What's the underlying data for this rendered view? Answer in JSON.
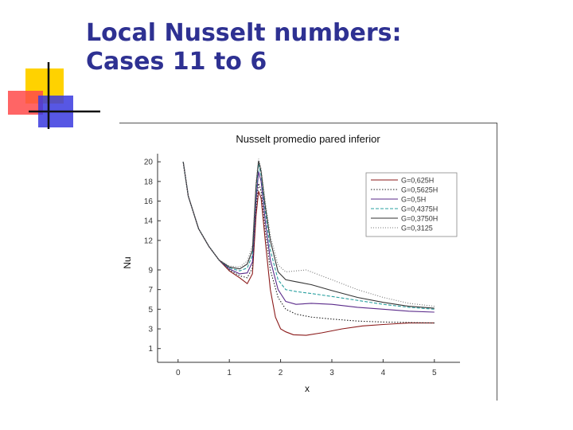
{
  "slide": {
    "title_line1": "Local Nusselt numbers:",
    "title_line2": "Cases 11 to 6"
  },
  "colors": {
    "title": "#2e3192",
    "deco_yellow": "#ffd200",
    "deco_red": "#ff4a4a",
    "deco_blue": "#3a3adf"
  },
  "chart_data": {
    "type": "line",
    "title": "Nusselt promedio pared inferior",
    "xlabel": "x",
    "ylabel": "Nu",
    "xlim": [
      -0.4,
      5.5
    ],
    "ylim": [
      -0.4,
      20.5
    ],
    "xticks": [
      "0",
      "1",
      "2",
      "3",
      "4",
      "5"
    ],
    "yticks": [
      "1",
      "3",
      "5",
      "7",
      "9",
      "12",
      "14",
      "16",
      "18",
      "20"
    ],
    "grid": false,
    "legend_position": "top-right",
    "series": [
      {
        "name": "G=0,625H",
        "color": "#8b1a1a",
        "dash": "",
        "points": [
          [
            0.1,
            20
          ],
          [
            0.2,
            16.5
          ],
          [
            0.4,
            13.2
          ],
          [
            0.6,
            11.4
          ],
          [
            0.8,
            10.0
          ],
          [
            1.0,
            8.9
          ],
          [
            1.2,
            8.2
          ],
          [
            1.35,
            7.6
          ],
          [
            1.45,
            8.6
          ],
          [
            1.52,
            14.5
          ],
          [
            1.57,
            17.0
          ],
          [
            1.62,
            16.3
          ],
          [
            1.7,
            12
          ],
          [
            1.8,
            7
          ],
          [
            1.9,
            4.2
          ],
          [
            2.0,
            3.0
          ],
          [
            2.1,
            2.7
          ],
          [
            2.25,
            2.4
          ],
          [
            2.5,
            2.35
          ],
          [
            2.8,
            2.6
          ],
          [
            3.2,
            3.0
          ],
          [
            3.6,
            3.3
          ],
          [
            4.0,
            3.45
          ],
          [
            4.5,
            3.6
          ],
          [
            5.0,
            3.6
          ]
        ]
      },
      {
        "name": "G=0,5625H",
        "color": "#222222",
        "dash": "1.5,2",
        "points": [
          [
            0.1,
            20
          ],
          [
            0.2,
            16.5
          ],
          [
            0.4,
            13.2
          ],
          [
            0.6,
            11.4
          ],
          [
            0.8,
            10.0
          ],
          [
            1.0,
            9.0
          ],
          [
            1.2,
            8.4
          ],
          [
            1.35,
            8.2
          ],
          [
            1.45,
            9.2
          ],
          [
            1.52,
            15.2
          ],
          [
            1.57,
            17.8
          ],
          [
            1.62,
            17.0
          ],
          [
            1.7,
            13
          ],
          [
            1.8,
            9
          ],
          [
            1.95,
            6.2
          ],
          [
            2.1,
            5.0
          ],
          [
            2.3,
            4.5
          ],
          [
            2.6,
            4.2
          ],
          [
            3.0,
            4.0
          ],
          [
            3.5,
            3.8
          ],
          [
            4.0,
            3.7
          ],
          [
            4.5,
            3.65
          ],
          [
            5.0,
            3.6
          ]
        ]
      },
      {
        "name": "G=0,5H",
        "color": "#5a2a8a",
        "dash": "",
        "points": [
          [
            0.1,
            20
          ],
          [
            0.2,
            16.5
          ],
          [
            0.4,
            13.2
          ],
          [
            0.6,
            11.4
          ],
          [
            0.8,
            10.0
          ],
          [
            1.0,
            9.1
          ],
          [
            1.2,
            8.6
          ],
          [
            1.35,
            8.7
          ],
          [
            1.45,
            9.8
          ],
          [
            1.52,
            16
          ],
          [
            1.57,
            19.0
          ],
          [
            1.62,
            18.0
          ],
          [
            1.7,
            14
          ],
          [
            1.8,
            10
          ],
          [
            1.95,
            7.0
          ],
          [
            2.1,
            5.8
          ],
          [
            2.3,
            5.5
          ],
          [
            2.6,
            5.6
          ],
          [
            3.0,
            5.5
          ],
          [
            3.5,
            5.2
          ],
          [
            4.0,
            5.0
          ],
          [
            4.5,
            4.8
          ],
          [
            5.0,
            4.7
          ]
        ]
      },
      {
        "name": "G=0,4375H",
        "color": "#2aa0a0",
        "dash": "4,2",
        "points": [
          [
            0.1,
            20
          ],
          [
            0.2,
            16.5
          ],
          [
            0.4,
            13.2
          ],
          [
            0.6,
            11.4
          ],
          [
            0.8,
            10.0
          ],
          [
            1.0,
            9.2
          ],
          [
            1.2,
            8.9
          ],
          [
            1.35,
            9.2
          ],
          [
            1.45,
            10.5
          ],
          [
            1.52,
            16.8
          ],
          [
            1.57,
            19.8
          ],
          [
            1.62,
            18.6
          ],
          [
            1.7,
            15
          ],
          [
            1.8,
            11
          ],
          [
            1.95,
            8.0
          ],
          [
            2.1,
            7.0
          ],
          [
            2.3,
            6.8
          ],
          [
            2.6,
            6.6
          ],
          [
            3.0,
            6.3
          ],
          [
            3.5,
            5.9
          ],
          [
            4.0,
            5.5
          ],
          [
            4.5,
            5.2
          ],
          [
            5.0,
            5.0
          ]
        ]
      },
      {
        "name": "G=0,3750H",
        "color": "#333333",
        "dash": "",
        "points": [
          [
            0.1,
            20
          ],
          [
            0.2,
            16.5
          ],
          [
            0.4,
            13.2
          ],
          [
            0.6,
            11.4
          ],
          [
            0.8,
            10.0
          ],
          [
            1.0,
            9.3
          ],
          [
            1.2,
            9.1
          ],
          [
            1.35,
            9.6
          ],
          [
            1.45,
            11
          ],
          [
            1.52,
            17.5
          ],
          [
            1.57,
            20.1
          ],
          [
            1.62,
            19.0
          ],
          [
            1.7,
            15.5
          ],
          [
            1.8,
            12
          ],
          [
            1.95,
            8.8
          ],
          [
            2.1,
            8.0
          ],
          [
            2.3,
            7.8
          ],
          [
            2.6,
            7.5
          ],
          [
            3.0,
            6.9
          ],
          [
            3.5,
            6.2
          ],
          [
            4.0,
            5.7
          ],
          [
            4.5,
            5.3
          ],
          [
            5.0,
            5.1
          ]
        ]
      },
      {
        "name": "G=0,3125",
        "color": "#777777",
        "dash": "1,2",
        "points": [
          [
            0.1,
            20
          ],
          [
            0.2,
            16.5
          ],
          [
            0.4,
            13.2
          ],
          [
            0.6,
            11.4
          ],
          [
            0.8,
            10.0
          ],
          [
            1.0,
            9.4
          ],
          [
            1.2,
            9.3
          ],
          [
            1.35,
            9.9
          ],
          [
            1.45,
            11.5
          ],
          [
            1.52,
            18
          ],
          [
            1.57,
            20.3
          ],
          [
            1.62,
            19.3
          ],
          [
            1.7,
            16
          ],
          [
            1.8,
            12.5
          ],
          [
            1.95,
            9.5
          ],
          [
            2.1,
            8.8
          ],
          [
            2.3,
            8.9
          ],
          [
            2.5,
            9.0
          ],
          [
            3.0,
            8.0
          ],
          [
            3.5,
            7.0
          ],
          [
            4.0,
            6.2
          ],
          [
            4.5,
            5.6
          ],
          [
            5.0,
            5.3
          ]
        ]
      }
    ]
  }
}
